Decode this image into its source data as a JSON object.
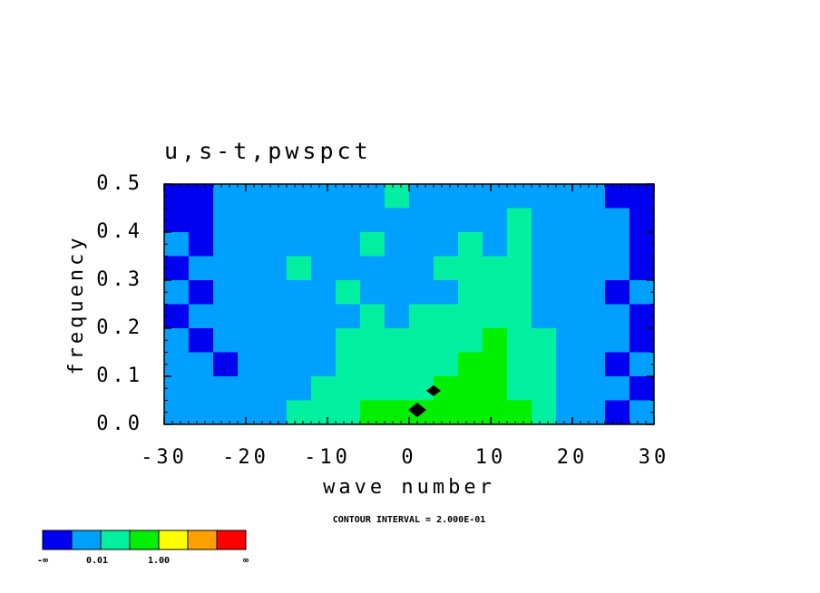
{
  "chart_data": {
    "type": "contour",
    "title": "u,s-t,pwspct",
    "x_label": "wave number",
    "y_label": "frequency",
    "annotation": "CONTOUR INTERVAL = 2.000E-01",
    "xlim": [
      -30,
      30
    ],
    "ylim": [
      0,
      0.5
    ],
    "xticks": [
      -30,
      -20,
      -10,
      0,
      10,
      20,
      30
    ],
    "yticks": [
      {
        "value": 0,
        "label": "0.0"
      },
      {
        "value": 0.1,
        "label": "0.1"
      },
      {
        "value": 0.2,
        "label": "0.2"
      },
      {
        "value": 0.3,
        "label": "0.3"
      },
      {
        "value": 0.4,
        "label": "0.4"
      },
      {
        "value": 0.5,
        "label": "0.5"
      }
    ],
    "colorbar": {
      "colors": [
        "#0000f0",
        "#00a0ff",
        "#00f0a0",
        "#00f000",
        "#ffff00",
        "#ffa000",
        "#ff0000"
      ],
      "labels": [
        "-∞",
        "0.01",
        "1.00",
        "∞"
      ]
    },
    "x": [
      -28.5,
      -25.5,
      -22.5,
      -19.5,
      -16.5,
      -13.5,
      -10.5,
      -7.5,
      -4.5,
      -1.5,
      1.5,
      4.5,
      7.5,
      10.5,
      13.5,
      16.5,
      19.5,
      22.5,
      25.5,
      28.5
    ],
    "y": [
      0.475,
      0.425,
      0.375,
      0.325,
      0.275,
      0.225,
      0.175,
      0.125,
      0.075,
      0.025
    ],
    "z": [
      [
        0,
        0,
        1,
        1,
        1,
        1,
        1,
        1,
        1,
        2,
        1,
        1,
        1,
        1,
        1,
        1,
        1,
        1,
        0,
        0
      ],
      [
        0,
        0,
        1,
        1,
        1,
        1,
        1,
        1,
        1,
        1,
        1,
        1,
        1,
        1,
        2,
        1,
        1,
        1,
        1,
        0
      ],
      [
        1,
        0,
        1,
        1,
        1,
        1,
        1,
        1,
        2,
        1,
        1,
        1,
        2,
        1,
        2,
        1,
        1,
        1,
        1,
        0
      ],
      [
        0,
        1,
        1,
        1,
        1,
        2,
        1,
        1,
        1,
        1,
        1,
        2,
        2,
        2,
        2,
        1,
        1,
        1,
        1,
        0
      ],
      [
        1,
        0,
        1,
        1,
        1,
        1,
        1,
        2,
        1,
        1,
        1,
        1,
        2,
        2,
        2,
        1,
        1,
        1,
        0,
        1
      ],
      [
        0,
        1,
        1,
        1,
        1,
        1,
        1,
        1,
        2,
        1,
        2,
        2,
        2,
        2,
        2,
        1,
        1,
        1,
        1,
        0
      ],
      [
        1,
        0,
        1,
        1,
        1,
        1,
        1,
        2,
        2,
        2,
        2,
        2,
        2,
        3,
        2,
        2,
        1,
        1,
        1,
        0
      ],
      [
        1,
        1,
        0,
        1,
        1,
        1,
        1,
        2,
        2,
        2,
        2,
        2,
        3,
        3,
        2,
        2,
        1,
        1,
        0,
        1
      ],
      [
        1,
        1,
        1,
        1,
        1,
        1,
        2,
        2,
        2,
        2,
        2,
        3,
        3,
        3,
        2,
        2,
        1,
        1,
        1,
        0
      ],
      [
        1,
        1,
        1,
        1,
        1,
        2,
        2,
        2,
        3,
        3,
        3,
        3,
        3,
        3,
        3,
        2,
        1,
        1,
        0,
        1
      ]
    ]
  }
}
